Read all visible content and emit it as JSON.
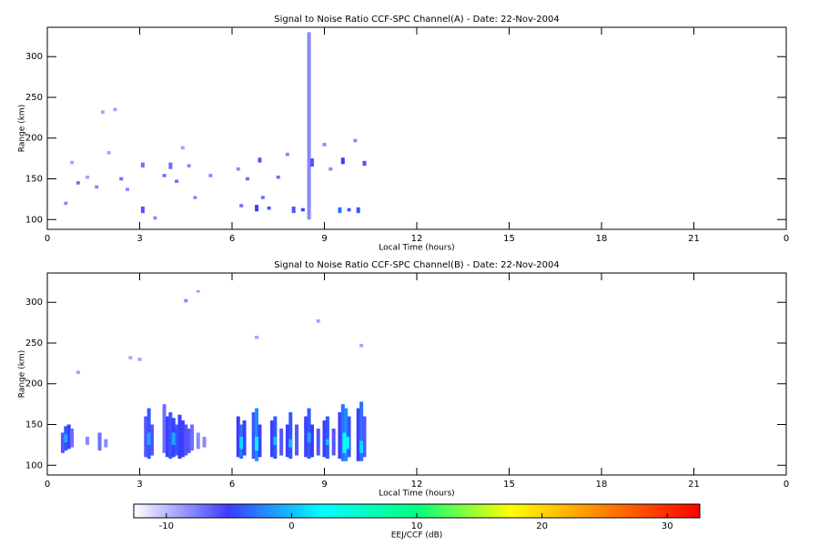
{
  "chart_data": [
    {
      "type": "heatmap",
      "title": "Signal to Noise Ratio CCF-SPC Channel(A) - Date: 22-Nov-2004",
      "x_label": "Local Time (hours)",
      "y_label": "Range (km)",
      "xlim": [
        0,
        24
      ],
      "xticks": [
        0,
        3,
        6,
        9,
        12,
        15,
        18,
        21,
        {
          "value": 24,
          "label": "0"
        }
      ],
      "ylim": [
        88,
        336
      ],
      "yticks": [
        100,
        150,
        200,
        250,
        300
      ],
      "x": [
        0.6,
        0.8,
        1.0,
        1.3,
        1.6,
        1.8,
        2.0,
        2.2,
        2.4,
        2.6,
        3.1,
        3.1,
        3.5,
        3.8,
        4.0,
        4.2,
        4.4,
        4.6,
        4.8,
        5.3,
        6.2,
        6.3,
        6.5,
        6.8,
        6.9,
        7.2,
        7.5,
        7.8,
        8.0,
        8.3,
        8.5,
        8.6,
        9.0,
        9.5,
        9.6,
        9.8,
        10.0,
        10.1,
        10.3,
        9.2,
        7.0
      ],
      "y0": [
        118,
        168,
        143,
        150,
        138,
        230,
        180,
        233,
        148,
        135,
        108,
        164,
        100,
        152,
        162,
        145,
        186,
        164,
        125,
        152,
        160,
        115,
        148,
        110,
        170,
        112,
        150,
        178,
        108,
        110,
        100,
        165,
        190,
        108,
        168,
        110,
        195,
        108,
        166,
        160,
        125
      ],
      "y1": [
        122,
        172,
        147,
        154,
        142,
        234,
        184,
        237,
        152,
        139,
        116,
        170,
        104,
        156,
        170,
        149,
        190,
        168,
        129,
        156,
        164,
        119,
        152,
        118,
        176,
        116,
        154,
        182,
        116,
        114,
        330,
        175,
        194,
        115,
        176,
        114,
        199,
        115,
        172,
        164,
        129
      ],
      "values": [
        -8,
        -9,
        -7,
        -9,
        -8,
        -9,
        -9,
        -9,
        -7,
        -8,
        -6,
        -7,
        -8,
        -7,
        -7,
        -7,
        -9,
        -8,
        -8,
        -8,
        -8,
        -7,
        -7,
        -5,
        -6,
        -6,
        -7,
        -8,
        -6,
        -5,
        -8,
        -6,
        -8,
        -3,
        -5,
        -4,
        -8,
        -4,
        -6,
        -8,
        -7
      ]
    },
    {
      "type": "heatmap",
      "title": "Signal to Noise Ratio CCF-SPC Channel(B) - Date: 22-Nov-2004",
      "x_label": "Local Time (hours)",
      "y_label": "Range (km)",
      "xlim": [
        0,
        24
      ],
      "xticks": [
        0,
        3,
        6,
        9,
        12,
        15,
        18,
        21,
        {
          "value": 24,
          "label": "0"
        }
      ],
      "ylim": [
        88,
        336
      ],
      "yticks": [
        100,
        150,
        200,
        250,
        300
      ],
      "x": [
        0.5,
        0.6,
        0.7,
        0.8,
        1.3,
        1.7,
        1.9,
        3.2,
        3.3,
        3.4,
        3.8,
        3.9,
        4.0,
        4.1,
        4.2,
        4.3,
        4.4,
        4.5,
        4.6,
        4.7,
        4.9,
        5.1,
        6.2,
        6.3,
        6.4,
        6.7,
        6.8,
        6.9,
        7.3,
        7.4,
        7.6,
        7.8,
        7.9,
        8.1,
        8.4,
        8.5,
        8.6,
        8.8,
        9.0,
        9.1,
        9.3,
        9.5,
        9.6,
        9.7,
        9.8,
        10.1,
        10.2,
        10.3,
        0.6,
        3.3,
        4.1,
        6.3,
        6.8,
        7.4,
        7.9,
        8.5,
        9.1,
        9.65,
        9.75,
        10.2,
        4.5,
        4.9,
        8.8,
        6.8,
        10.2,
        2.7,
        1.0,
        3.0
      ],
      "y0": [
        115,
        118,
        120,
        122,
        125,
        118,
        122,
        110,
        108,
        112,
        115,
        110,
        108,
        110,
        112,
        108,
        110,
        112,
        115,
        118,
        120,
        122,
        110,
        108,
        112,
        108,
        105,
        110,
        110,
        108,
        112,
        110,
        108,
        112,
        110,
        108,
        110,
        112,
        110,
        108,
        112,
        108,
        105,
        105,
        110,
        105,
        105,
        110,
        128,
        125,
        125,
        120,
        118,
        125,
        122,
        128,
        125,
        115,
        120,
        115,
        300,
        312,
        275,
        255,
        245,
        230,
        212,
        228
      ],
      "y1": [
        140,
        148,
        150,
        145,
        135,
        140,
        132,
        160,
        170,
        150,
        175,
        160,
        165,
        158,
        150,
        162,
        155,
        150,
        145,
        150,
        140,
        135,
        160,
        150,
        155,
        165,
        170,
        150,
        155,
        160,
        145,
        150,
        165,
        150,
        160,
        170,
        150,
        145,
        155,
        160,
        145,
        165,
        175,
        170,
        160,
        170,
        178,
        160,
        138,
        140,
        140,
        135,
        135,
        135,
        132,
        140,
        132,
        140,
        135,
        130,
        304,
        315,
        279,
        259,
        249,
        234,
        216,
        232
      ],
      "values": [
        -6,
        -4,
        -5,
        -7,
        -8,
        -7,
        -8,
        -6,
        -4,
        -6,
        -7,
        -5,
        -4,
        -5,
        -4,
        -5,
        -5,
        -6,
        -6,
        -7,
        -8,
        -8,
        -5,
        -3,
        -5,
        -4,
        -2,
        -5,
        -5,
        -4,
        -6,
        -5,
        -4,
        -6,
        -5,
        -4,
        -5,
        -6,
        -5,
        -4,
        -6,
        -5,
        -3,
        -2,
        -4,
        -5,
        -3,
        -6,
        -1,
        -1,
        -1,
        1,
        2,
        0,
        0,
        -1,
        0,
        3,
        4,
        1,
        -8,
        -9,
        -9,
        -9,
        -9,
        -9,
        -9,
        -9
      ]
    },
    {
      "type": "colorbar",
      "label": "EEJ/CCF (dB)",
      "clim": [
        -12.6,
        32.6
      ],
      "cticks": [
        -10,
        0,
        10,
        20,
        30
      ],
      "colormap": [
        "#ffffff",
        "#3c3cff",
        "#00ffff",
        "#00ff80",
        "#ffff00",
        "#ff8000",
        "#ff0000"
      ]
    }
  ]
}
